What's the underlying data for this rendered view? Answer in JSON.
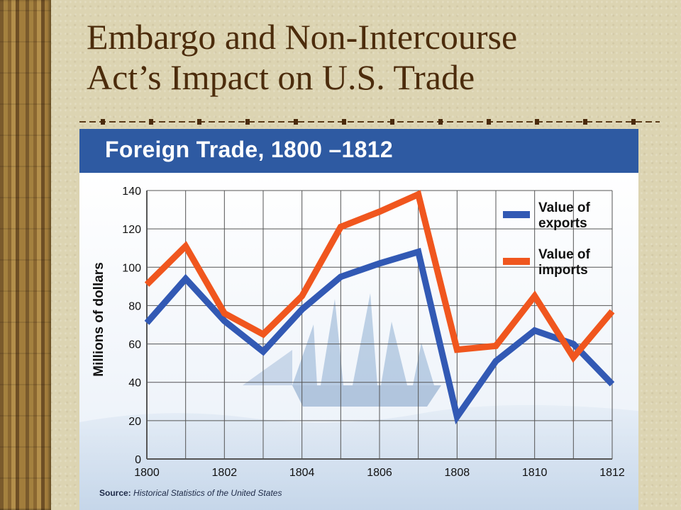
{
  "slide": {
    "title_line1": "Embargo and Non-Intercourse",
    "title_line2": "Act’s Impact on U.S. Trade"
  },
  "colors": {
    "title": "#4c2c0c",
    "header_bg": "#2e5aa2",
    "exports": "#3259b4",
    "imports": "#f0561e",
    "grid": "#555555"
  },
  "chart_data": {
    "type": "line",
    "title": "Foreign Trade, 1800 –1812",
    "ylabel": "Millions of dollars",
    "xlabel": "",
    "x": [
      1800,
      1801,
      1802,
      1803,
      1804,
      1805,
      1806,
      1807,
      1808,
      1809,
      1810,
      1811,
      1812
    ],
    "x_tick_labels": [
      "1800",
      "1802",
      "1804",
      "1806",
      "1808",
      "1810",
      "1812"
    ],
    "y_tick_labels": [
      "0",
      "20",
      "40",
      "60",
      "80",
      "100",
      "120",
      "140"
    ],
    "ylim": [
      0,
      140
    ],
    "xlim": [
      1800,
      1812
    ],
    "grid": true,
    "legend_position": "top-right",
    "series": [
      {
        "name": "Value of exports",
        "legend_lines": [
          "Value of",
          "exports"
        ],
        "color": "#3259b4",
        "values": [
          71,
          94,
          72,
          56,
          78,
          95,
          102,
          108,
          22,
          51,
          67,
          60,
          39
        ]
      },
      {
        "name": "Value of imports",
        "legend_lines": [
          "Value of",
          "imports"
        ],
        "color": "#f0561e",
        "values": [
          91,
          111,
          76,
          65,
          85,
          121,
          129,
          138,
          57,
          59,
          85,
          53,
          77
        ]
      }
    ],
    "source_label": "Source:",
    "source_text": "Historical Statistics of the United States"
  }
}
